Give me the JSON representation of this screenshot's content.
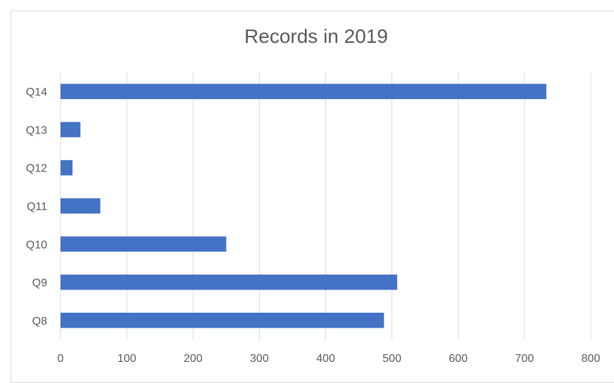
{
  "chart_data": {
    "type": "bar",
    "orientation": "horizontal",
    "title": "Records in 2019",
    "xlabel": "",
    "ylabel": "",
    "categories": [
      "Q8",
      "Q9",
      "Q10",
      "Q11",
      "Q12",
      "Q13",
      "Q14"
    ],
    "values": [
      488,
      508,
      250,
      60,
      18,
      30,
      733
    ],
    "xlim": [
      0,
      800
    ],
    "x_ticks": [
      0,
      100,
      200,
      300,
      400,
      500,
      600,
      700,
      800
    ],
    "grid": "vertical",
    "legend": "none",
    "colors": {
      "bar": "#4472c4",
      "grid": "#d9d9d9",
      "tick_text": "#595959"
    }
  }
}
